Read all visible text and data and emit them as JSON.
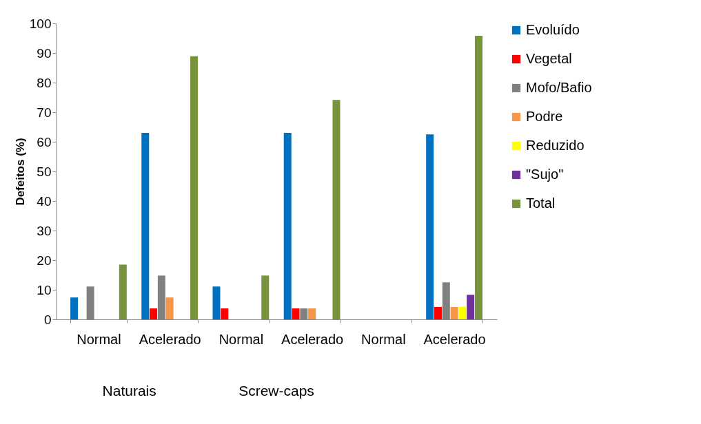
{
  "chart_data": {
    "type": "bar",
    "ylabel": "Defeitos (%)",
    "categories": [
      "Normal",
      "Acelerado",
      "Normal",
      "Acelerado",
      "Normal",
      "Acelerado"
    ],
    "annotations": [
      "Naturais",
      "Screw-caps"
    ],
    "series": [
      {
        "name": "Evoluído",
        "color": "#0070c0",
        "values": [
          7.4,
          63,
          11.1,
          63,
          0,
          62.5
        ]
      },
      {
        "name": "Vegetal",
        "color": "#ff0000",
        "values": [
          0,
          3.7,
          3.7,
          3.7,
          0,
          4.2
        ]
      },
      {
        "name": "Mofo/Bafio",
        "color": "#808080",
        "values": [
          11.1,
          14.8,
          0,
          3.7,
          0,
          12.5
        ]
      },
      {
        "name": "Podre",
        "color": "#f79646",
        "values": [
          0,
          7.4,
          0,
          3.7,
          0,
          4.2
        ]
      },
      {
        "name": "Reduzido",
        "color": "#ffff00",
        "values": [
          0,
          0,
          0,
          0,
          0,
          4.2
        ]
      },
      {
        "name": "\"Sujo\"",
        "color": "#7030a0",
        "values": [
          0,
          0,
          0,
          0,
          0,
          8.3
        ]
      },
      {
        "name": "Total",
        "color": "#77933c",
        "values": [
          18.5,
          88.9,
          14.8,
          74.1,
          0,
          95.8
        ]
      }
    ],
    "ylim": [
      0,
      100
    ],
    "yticks": [
      0,
      10,
      20,
      30,
      40,
      50,
      60,
      70,
      80,
      90,
      100
    ],
    "grid": false,
    "legend": "right"
  }
}
